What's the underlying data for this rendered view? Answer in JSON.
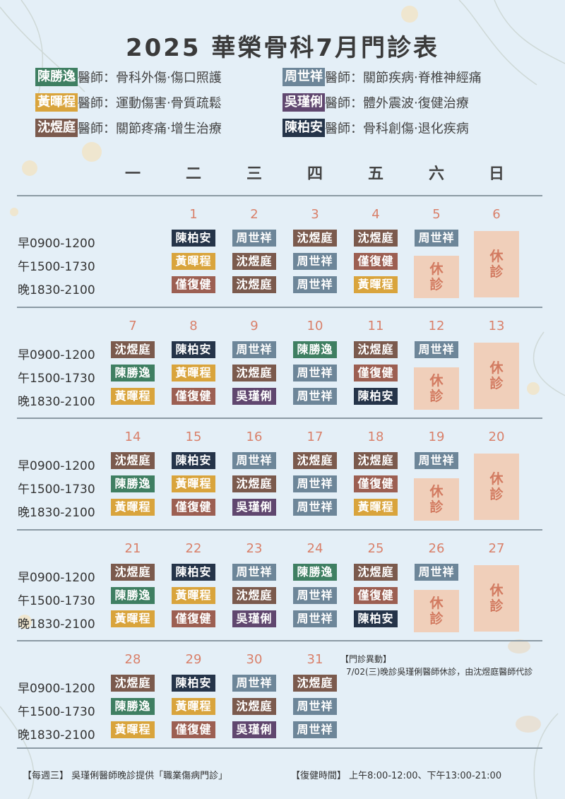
{
  "title": "2025 華榮骨科7月門診表",
  "colors": {
    "陳勝逸": "#3f7f62",
    "黃暉程": "#d9a43c",
    "沈煜庭": "#7b5a4d",
    "周世祥": "#6d8699",
    "吳瑾俐": "#60476f",
    "陳柏安": "#253449",
    "僅復健": "#9c5f52",
    "rest_bg": "#f0cfba",
    "rest_text": "#d27a60",
    "daynum": "#d9806a"
  },
  "legend": [
    {
      "name": "陳勝逸",
      "title": "醫師：",
      "specialty": "骨科外傷‧傷口照護"
    },
    {
      "name": "周世祥",
      "title": "醫師：",
      "specialty": "關節疾病‧脊椎神經痛"
    },
    {
      "name": "黃暉程",
      "title": "醫師：",
      "specialty": "運動傷害‧骨質疏鬆"
    },
    {
      "name": "吳瑾俐",
      "title": "醫師：",
      "specialty": "體外震波‧復健治療"
    },
    {
      "name": "沈煜庭",
      "title": "醫師：",
      "specialty": "關節疼痛‧增生治療"
    },
    {
      "name": "陳柏安",
      "title": "醫師：",
      "specialty": "骨科創傷‧退化疾病"
    }
  ],
  "weekdays": [
    "一",
    "二",
    "三",
    "四",
    "五",
    "六",
    "日"
  ],
  "slots": [
    "早0900-1200",
    "午1500-1730",
    "晚1830-2100"
  ],
  "rest_label": "休診",
  "weeks": [
    {
      "days": [
        {
          "col": 1,
          "date": "1",
          "shifts": [
            "陳柏安",
            "黃暉程",
            "僅復健"
          ]
        },
        {
          "col": 2,
          "date": "2",
          "shifts": [
            "周世祥",
            "沈煜庭",
            "沈煜庭"
          ]
        },
        {
          "col": 3,
          "date": "3",
          "shifts": [
            "沈煜庭",
            "周世祥",
            "周世祥"
          ]
        },
        {
          "col": 4,
          "date": "4",
          "shifts": [
            "沈煜庭",
            "僅復健",
            "黃暉程"
          ]
        },
        {
          "col": 5,
          "date": "5",
          "shifts": [
            "周世祥"
          ]
        },
        {
          "col": 6,
          "date": "6",
          "shifts": []
        }
      ]
    },
    {
      "days": [
        {
          "col": 0,
          "date": "7",
          "shifts": [
            "沈煜庭",
            "陳勝逸",
            "黃暉程"
          ]
        },
        {
          "col": 1,
          "date": "8",
          "shifts": [
            "陳柏安",
            "黃暉程",
            "僅復健"
          ]
        },
        {
          "col": 2,
          "date": "9",
          "shifts": [
            "周世祥",
            "沈煜庭",
            "吳瑾俐"
          ]
        },
        {
          "col": 3,
          "date": "10",
          "shifts": [
            "陳勝逸",
            "周世祥",
            "周世祥"
          ]
        },
        {
          "col": 4,
          "date": "11",
          "shifts": [
            "沈煜庭",
            "僅復健",
            "陳柏安"
          ]
        },
        {
          "col": 5,
          "date": "12",
          "shifts": [
            "周世祥"
          ]
        },
        {
          "col": 6,
          "date": "13",
          "shifts": []
        }
      ]
    },
    {
      "days": [
        {
          "col": 0,
          "date": "14",
          "shifts": [
            "沈煜庭",
            "陳勝逸",
            "黃暉程"
          ]
        },
        {
          "col": 1,
          "date": "15",
          "shifts": [
            "陳柏安",
            "黃暉程",
            "僅復健"
          ]
        },
        {
          "col": 2,
          "date": "16",
          "shifts": [
            "周世祥",
            "沈煜庭",
            "吳瑾俐"
          ]
        },
        {
          "col": 3,
          "date": "17",
          "shifts": [
            "沈煜庭",
            "周世祥",
            "周世祥"
          ]
        },
        {
          "col": 4,
          "date": "18",
          "shifts": [
            "沈煜庭",
            "僅復健",
            "黃暉程"
          ]
        },
        {
          "col": 5,
          "date": "19",
          "shifts": [
            "周世祥"
          ]
        },
        {
          "col": 6,
          "date": "20",
          "shifts": []
        }
      ]
    },
    {
      "days": [
        {
          "col": 0,
          "date": "21",
          "shifts": [
            "沈煜庭",
            "陳勝逸",
            "黃暉程"
          ]
        },
        {
          "col": 1,
          "date": "22",
          "shifts": [
            "陳柏安",
            "黃暉程",
            "僅復健"
          ]
        },
        {
          "col": 2,
          "date": "23",
          "shifts": [
            "周世祥",
            "沈煜庭",
            "吳瑾俐"
          ]
        },
        {
          "col": 3,
          "date": "24",
          "shifts": [
            "陳勝逸",
            "周世祥",
            "周世祥"
          ]
        },
        {
          "col": 4,
          "date": "25",
          "shifts": [
            "沈煜庭",
            "僅復健",
            "陳柏安"
          ]
        },
        {
          "col": 5,
          "date": "26",
          "shifts": [
            "周世祥"
          ]
        },
        {
          "col": 6,
          "date": "27",
          "shifts": []
        }
      ]
    },
    {
      "days": [
        {
          "col": 0,
          "date": "28",
          "shifts": [
            "沈煜庭",
            "陳勝逸",
            "黃暉程"
          ]
        },
        {
          "col": 1,
          "date": "29",
          "shifts": [
            "陳柏安",
            "黃暉程",
            "僅復健"
          ]
        },
        {
          "col": 2,
          "date": "30",
          "shifts": [
            "周世祥",
            "沈煜庭",
            "吳瑾俐"
          ]
        },
        {
          "col": 3,
          "date": "31",
          "shifts": [
            "沈煜庭",
            "周世祥",
            "周世祥"
          ]
        }
      ]
    }
  ],
  "change_notice": {
    "title": "【門診異動】",
    "text": "7/02(三)晚診吳瑾俐醫師休診，由沈煜庭醫師代診"
  },
  "footer": {
    "left": "【每週三】 吳瑾俐醫師晚診提供「職業傷病門診」",
    "right": "【復健時間】 上午8:00-12:00、下午13:00-21:00"
  }
}
